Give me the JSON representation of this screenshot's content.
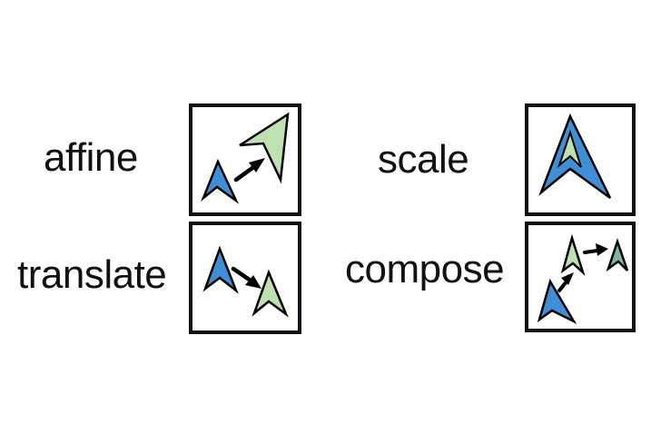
{
  "labels": {
    "affine": "affine",
    "translate": "translate",
    "scale": "scale",
    "compose": "compose"
  },
  "icons": {
    "shape": "chevron-arrow-shape",
    "arrow": "transform-arrow"
  },
  "colors": {
    "blue": "#3f8fd6",
    "light_blue": "#8fc5ea",
    "green": "#bfe0b0",
    "teal": "#7fb3a3",
    "arrow": "#000000",
    "frame": "#111111"
  }
}
